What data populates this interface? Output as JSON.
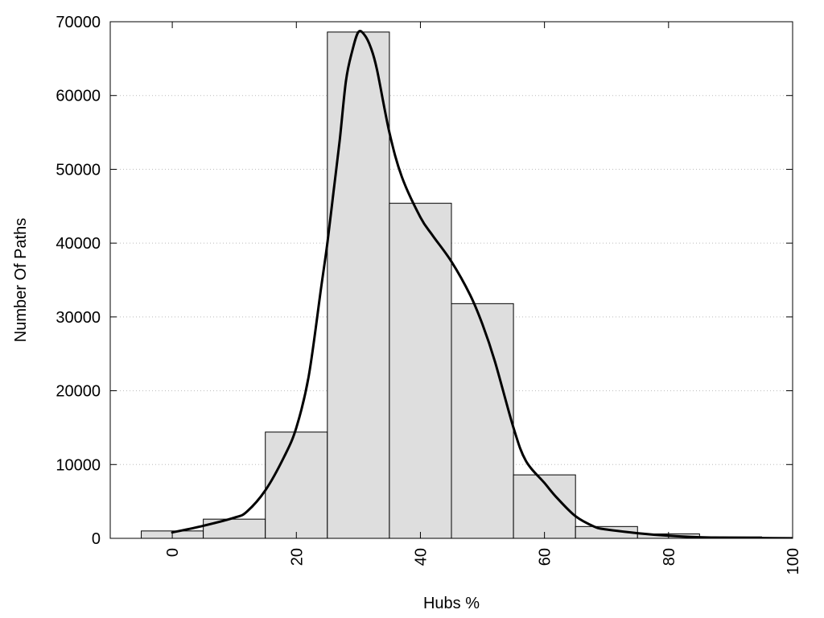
{
  "chart_data": {
    "type": "bar",
    "title": "",
    "xlabel": "Hubs %",
    "ylabel": "Number Of Paths",
    "xlim": [
      -10,
      100
    ],
    "ylim": [
      0,
      70000
    ],
    "x_ticks": [
      "0",
      "20",
      "40",
      "60",
      "80",
      "100"
    ],
    "y_ticks": [
      "0",
      "10000",
      "20000",
      "30000",
      "40000",
      "50000",
      "60000",
      "70000"
    ],
    "x_tick_values": [
      0,
      20,
      40,
      60,
      80,
      100
    ],
    "y_tick_values": [
      0,
      10000,
      20000,
      30000,
      40000,
      50000,
      60000,
      70000
    ],
    "grid": "horizontal dotted",
    "colors": {
      "bar_fill": "#dedede",
      "bar_stroke": "#000000",
      "grid": "#bbbbbb",
      "curve": "#000000"
    },
    "bins": [
      {
        "x0": -5,
        "x1": 5,
        "value": 1000
      },
      {
        "x0": 5,
        "x1": 15,
        "value": 2600
      },
      {
        "x0": 15,
        "x1": 25,
        "value": 14400
      },
      {
        "x0": 25,
        "x1": 35,
        "value": 68600
      },
      {
        "x0": 35,
        "x1": 45,
        "value": 45400
      },
      {
        "x0": 45,
        "x1": 55,
        "value": 31800
      },
      {
        "x0": 55,
        "x1": 65,
        "value": 8600
      },
      {
        "x0": 65,
        "x1": 75,
        "value": 1600
      },
      {
        "x0": 75,
        "x1": 85,
        "value": 600
      },
      {
        "x0": 85,
        "x1": 95,
        "value": 200
      },
      {
        "x0": 95,
        "x1": 105,
        "value": 50
      }
    ],
    "density_curve": {
      "x": [
        0,
        5,
        10,
        12,
        15,
        18,
        20,
        22,
        24,
        25,
        26,
        27,
        28,
        29,
        30,
        31,
        32,
        33,
        35,
        37,
        40,
        42,
        45,
        48,
        50,
        52,
        55,
        57,
        60,
        62,
        65,
        68,
        70,
        75,
        80,
        85,
        90,
        95,
        100
      ],
      "y": [
        800,
        1700,
        2800,
        3600,
        6500,
        11000,
        15000,
        22000,
        34000,
        40000,
        47000,
        54000,
        62000,
        66000,
        68600,
        68200,
        66500,
        63500,
        55000,
        49000,
        43500,
        41000,
        37500,
        33000,
        29000,
        24000,
        15000,
        10500,
        7500,
        5500,
        3000,
        1600,
        1200,
        700,
        350,
        150,
        80,
        40,
        20
      ]
    }
  }
}
